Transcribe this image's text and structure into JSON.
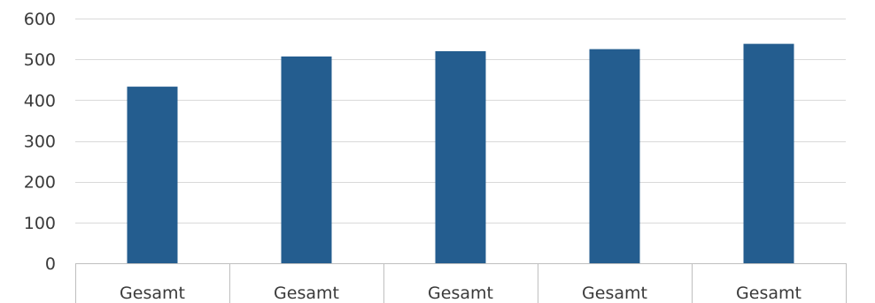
{
  "chart_data": {
    "type": "bar",
    "categories": [
      "Gesamt",
      "Gesamt",
      "Gesamt",
      "Gesamt",
      "Gesamt"
    ],
    "values": [
      433,
      507,
      520,
      525,
      538
    ],
    "title": "",
    "xlabel": "",
    "ylabel": "",
    "ylim": [
      0,
      600
    ],
    "yticks": [
      0,
      100,
      200,
      300,
      400,
      500,
      600
    ],
    "grid": true,
    "legend": "none",
    "colors": {
      "bar": "#245d8f",
      "grid": "#d9d9d9",
      "axis": "#bfbfbf",
      "text": "#3a3a3a"
    }
  }
}
